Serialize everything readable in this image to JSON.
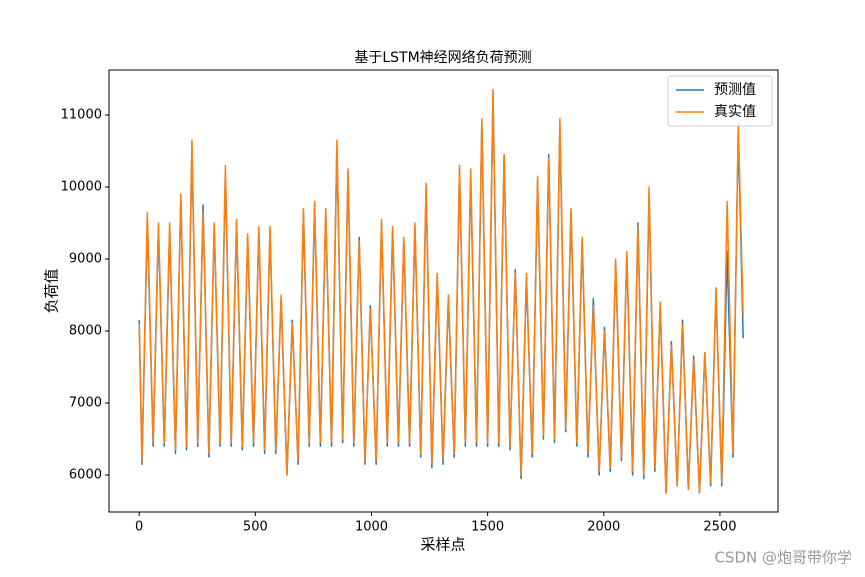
{
  "chart_data": {
    "type": "line",
    "title": "基于LSTM神经网络负荷预测",
    "xlabel": "采样点",
    "ylabel": "负荷值",
    "watermark": "CSDN @炮哥带你学",
    "legend": "upper right",
    "x": [
      0,
      12,
      35,
      60,
      83,
      108,
      131,
      156,
      179,
      204,
      227,
      252,
      275,
      300,
      323,
      348,
      371,
      396,
      419,
      444,
      467,
      492,
      515,
      540,
      563,
      588,
      611,
      636,
      659,
      684,
      707,
      732,
      755,
      780,
      803,
      828,
      851,
      876,
      899,
      924,
      947,
      972,
      995,
      1020,
      1043,
      1068,
      1091,
      1116,
      1139,
      1164,
      1187,
      1212,
      1235,
      1260,
      1283,
      1308,
      1331,
      1356,
      1379,
      1404,
      1427,
      1452,
      1475,
      1500,
      1523,
      1548,
      1571,
      1596,
      1619,
      1644,
      1667,
      1692,
      1715,
      1740,
      1763,
      1788,
      1811,
      1836,
      1859,
      1884,
      1907,
      1932,
      1955,
      1980,
      2003,
      2028,
      2051,
      2076,
      2099,
      2124,
      2147,
      2172,
      2195,
      2220,
      2243,
      2268,
      2291,
      2316,
      2339,
      2364,
      2387,
      2412,
      2435,
      2460,
      2483,
      2508,
      2531,
      2556,
      2579,
      2600
    ],
    "series": [
      {
        "name": "预测值",
        "color": "#1f77b4",
        "values": [
          8150,
          6150,
          9550,
          6400,
          9450,
          6400,
          9400,
          6300,
          9850,
          6350,
          10550,
          6400,
          9750,
          6250,
          9450,
          6400,
          10200,
          6400,
          9500,
          6350,
          9300,
          6400,
          9400,
          6300,
          9400,
          6300,
          8450,
          6000,
          8150,
          6150,
          9650,
          6400,
          9750,
          6400,
          9650,
          6400,
          10550,
          6450,
          10200,
          6400,
          9300,
          6150,
          8350,
          6150,
          9500,
          6400,
          9400,
          6400,
          9250,
          6400,
          9450,
          6250,
          10000,
          6100,
          8750,
          6150,
          8450,
          6250,
          10250,
          6400,
          10150,
          6400,
          10900,
          6400,
          11300,
          6400,
          10450,
          6350,
          8850,
          5950,
          8750,
          6250,
          10100,
          6500,
          10450,
          6450,
          10850,
          6600,
          9650,
          6400,
          9250,
          6250,
          8450,
          6000,
          8050,
          6050,
          8950,
          6200,
          9050,
          6000,
          9500,
          5950,
          9900,
          6050,
          8350,
          5750,
          7850,
          5850,
          8150,
          5800,
          7650,
          5750,
          7700,
          5850,
          8550,
          5850,
          9100,
          6250,
          10800,
          7900
        ]
      },
      {
        "name": "真实值",
        "color": "#ff7f0e",
        "values": [
          8100,
          6200,
          9650,
          6450,
          9500,
          6450,
          9500,
          6350,
          9900,
          6400,
          10650,
          6450,
          9650,
          6300,
          9500,
          6450,
          10300,
          6450,
          9550,
          6400,
          9350,
          6450,
          9450,
          6350,
          9450,
          6350,
          8500,
          6000,
          8100,
          6200,
          9700,
          6450,
          9800,
          6450,
          9700,
          6450,
          10650,
          6500,
          10250,
          6450,
          9250,
          6200,
          8300,
          6200,
          9550,
          6450,
          9450,
          6450,
          9300,
          6450,
          9500,
          6300,
          10050,
          6150,
          8800,
          6200,
          8500,
          6300,
          10300,
          6450,
          10250,
          6450,
          10950,
          6450,
          11350,
          6450,
          10450,
          6400,
          8800,
          6000,
          8800,
          6300,
          10150,
          6550,
          10400,
          6500,
          10950,
          6650,
          9700,
          6450,
          9300,
          6300,
          8350,
          6050,
          8000,
          6100,
          9000,
          6250,
          9100,
          6050,
          9450,
          6000,
          10000,
          6100,
          8400,
          5750,
          7800,
          5850,
          8100,
          5800,
          7600,
          5750,
          7700,
          5900,
          8600,
          5900,
          9800,
          6300,
          10900,
          8200
        ]
      }
    ],
    "xlim": [
      -130,
      2750
    ],
    "ylim": [
      5486,
      11625
    ],
    "xticks": [
      0,
      500,
      1000,
      1500,
      2000,
      2500
    ],
    "yticks": [
      6000,
      7000,
      8000,
      9000,
      10000,
      11000
    ]
  }
}
